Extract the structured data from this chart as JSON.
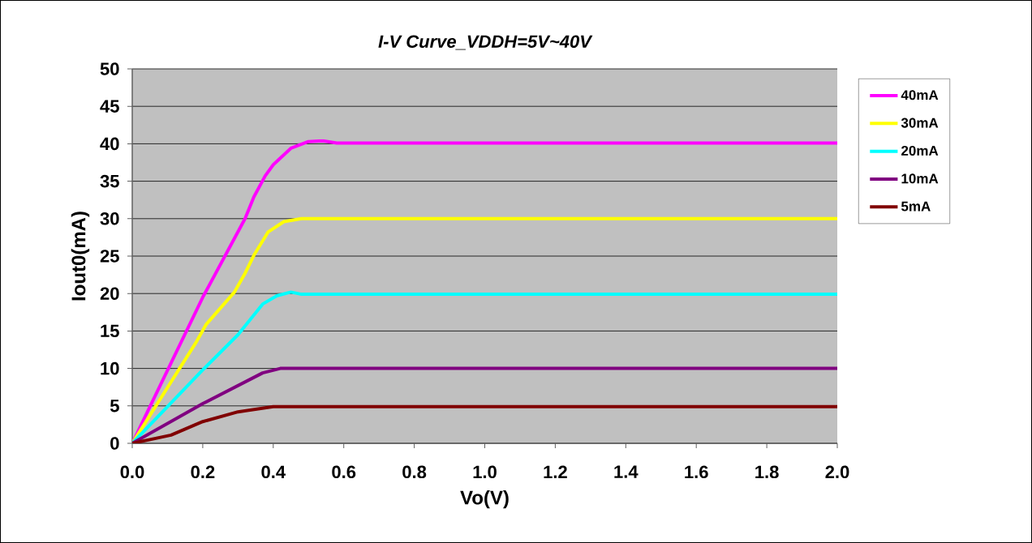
{
  "chart_data": {
    "type": "line",
    "title": "I-V Curve_VDDH=5V~40V",
    "xlabel": "Vo(V)",
    "ylabel": "Iout0(mA)",
    "xlim": [
      0,
      2.0
    ],
    "ylim": [
      0,
      50
    ],
    "xticks": [
      {
        "value": 0,
        "label": "0.0"
      },
      {
        "value": 0.2,
        "label": "0.2"
      },
      {
        "value": 0.4,
        "label": "0.4"
      },
      {
        "value": 0.6,
        "label": "0.6"
      },
      {
        "value": 0.8,
        "label": "0.8"
      },
      {
        "value": 1.0,
        "label": "1.0"
      },
      {
        "value": 1.2,
        "label": "1.2"
      },
      {
        "value": 1.4,
        "label": "1.4"
      },
      {
        "value": 1.6,
        "label": "1.6"
      },
      {
        "value": 1.8,
        "label": "1.8"
      },
      {
        "value": 2.0,
        "label": "2.0"
      }
    ],
    "yticks": [
      0,
      5,
      10,
      15,
      20,
      25,
      30,
      35,
      40,
      45,
      50
    ],
    "grid": "y",
    "legend": "right",
    "marker": "none",
    "line_style": "solid",
    "series": [
      {
        "name": "40mA",
        "color": "#ff00ff",
        "x": [
          0,
          0.2,
          0.32,
          0.345,
          0.377,
          0.4,
          0.45,
          0.5,
          0.54,
          0.58,
          2.0
        ],
        "values": [
          0,
          19.5,
          30,
          32.9,
          35.7,
          37.2,
          39.4,
          40.3,
          40.4,
          40.1,
          40.1
        ]
      },
      {
        "name": "30mA",
        "color": "#ffff00",
        "x": [
          0,
          0.18,
          0.21,
          0.29,
          0.32,
          0.345,
          0.385,
          0.43,
          0.48,
          2.0
        ],
        "values": [
          0,
          13.4,
          15.9,
          20.2,
          22.7,
          25.1,
          28.2,
          29.6,
          30,
          30
        ]
      },
      {
        "name": "20mA",
        "color": "#00ffff",
        "x": [
          0,
          0.2,
          0.3,
          0.37,
          0.41,
          0.45,
          0.48,
          2.0
        ],
        "values": [
          0,
          9.8,
          14.5,
          18.6,
          19.7,
          20.2,
          19.9,
          19.9
        ]
      },
      {
        "name": "10mA",
        "color": "#800080",
        "x": [
          0,
          0.2,
          0.37,
          0.42,
          2.0
        ],
        "values": [
          0,
          5.3,
          9.4,
          10.0,
          10.0
        ]
      },
      {
        "name": "5mA",
        "color": "#800000",
        "x": [
          0,
          0.11,
          0.2,
          0.3,
          0.4,
          2.0
        ],
        "values": [
          0,
          1.1,
          2.9,
          4.2,
          4.9,
          4.9
        ]
      }
    ]
  }
}
